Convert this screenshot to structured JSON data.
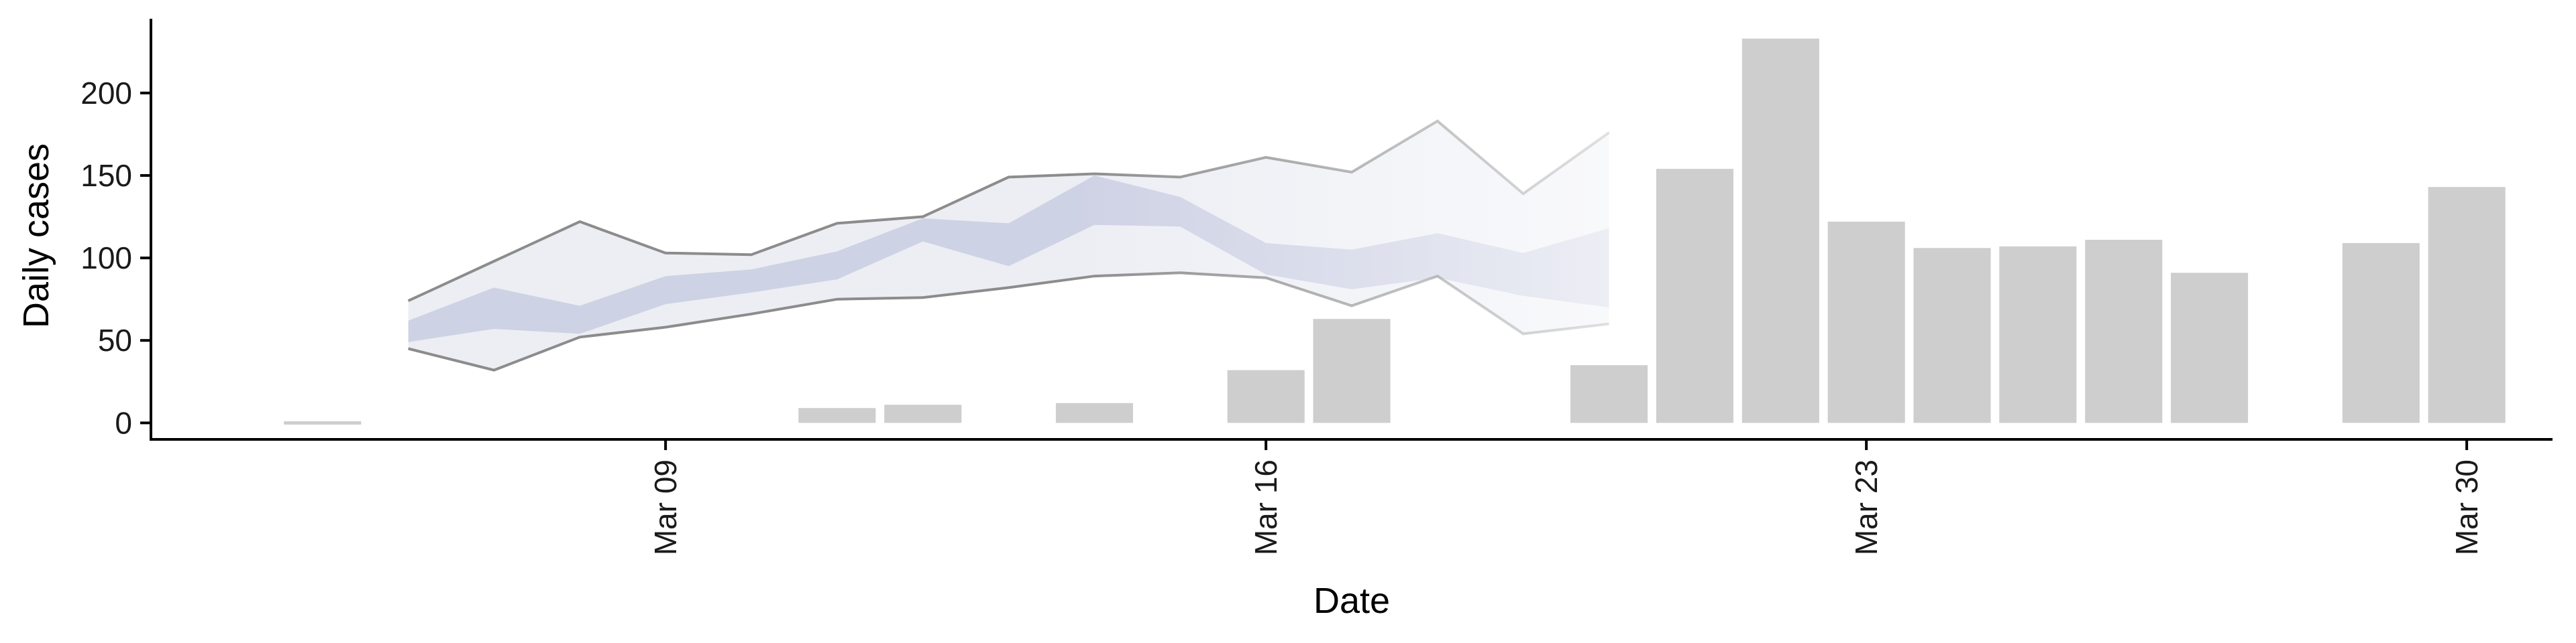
{
  "chart_data": {
    "type": "bar",
    "title": "",
    "xlabel": "Date",
    "ylabel": "Daily cases",
    "ylim": [
      -10,
      245
    ],
    "x_range": [
      "2020-03-03",
      "2020-03-31"
    ],
    "yticks": [
      0,
      50,
      100,
      150,
      200
    ],
    "xticks": [
      {
        "date": "2020-03-09",
        "label": "Mar 09"
      },
      {
        "date": "2020-03-16",
        "label": "Mar 16"
      },
      {
        "date": "2020-03-23",
        "label": "Mar 23"
      },
      {
        "date": "2020-03-30",
        "label": "Mar 30"
      }
    ],
    "grid": false,
    "legend": "none",
    "colors": {
      "bars": "#cccccc",
      "outer_band_fill": "#eceef4",
      "outer_band_line": "#8c8c8c",
      "inner_band_fill": "#c9cde2",
      "axis": "#000000"
    },
    "bars": [
      {
        "date": "2020-03-05",
        "value": 2
      },
      {
        "date": "2020-03-11",
        "value": 9
      },
      {
        "date": "2020-03-12",
        "value": 11
      },
      {
        "date": "2020-03-14",
        "value": 12
      },
      {
        "date": "2020-03-16",
        "value": 32
      },
      {
        "date": "2020-03-17",
        "value": 63
      },
      {
        "date": "2020-03-20",
        "value": 35
      },
      {
        "date": "2020-03-21",
        "value": 154
      },
      {
        "date": "2020-03-22",
        "value": 233
      },
      {
        "date": "2020-03-23",
        "value": 122
      },
      {
        "date": "2020-03-24",
        "value": 106
      },
      {
        "date": "2020-03-25",
        "value": 107
      },
      {
        "date": "2020-03-26",
        "value": 111
      },
      {
        "date": "2020-03-27",
        "value": 91
      },
      {
        "date": "2020-03-29",
        "value": 109
      },
      {
        "date": "2020-03-30",
        "value": 143
      }
    ],
    "outer_band": [
      {
        "date": "2020-03-06",
        "lower": 45,
        "upper": 74
      },
      {
        "date": "2020-03-07",
        "lower": 32,
        "upper": 98
      },
      {
        "date": "2020-03-08",
        "lower": 52,
        "upper": 122
      },
      {
        "date": "2020-03-09",
        "lower": 58,
        "upper": 103
      },
      {
        "date": "2020-03-10",
        "lower": 66,
        "upper": 102
      },
      {
        "date": "2020-03-11",
        "lower": 75,
        "upper": 121
      },
      {
        "date": "2020-03-12",
        "lower": 76,
        "upper": 125
      },
      {
        "date": "2020-03-13",
        "lower": 82,
        "upper": 149
      },
      {
        "date": "2020-03-14",
        "lower": 89,
        "upper": 151
      },
      {
        "date": "2020-03-15",
        "lower": 91,
        "upper": 149
      },
      {
        "date": "2020-03-16",
        "lower": 88,
        "upper": 161
      },
      {
        "date": "2020-03-17",
        "lower": 71,
        "upper": 152
      },
      {
        "date": "2020-03-18",
        "lower": 89,
        "upper": 183
      },
      {
        "date": "2020-03-19",
        "lower": 54,
        "upper": 139
      },
      {
        "date": "2020-03-20",
        "lower": 60,
        "upper": 176
      }
    ],
    "inner_band": [
      {
        "date": "2020-03-06",
        "lower": 49,
        "upper": 62
      },
      {
        "date": "2020-03-07",
        "lower": 57,
        "upper": 82
      },
      {
        "date": "2020-03-08",
        "lower": 54,
        "upper": 71
      },
      {
        "date": "2020-03-09",
        "lower": 72,
        "upper": 89
      },
      {
        "date": "2020-03-10",
        "lower": 79,
        "upper": 93
      },
      {
        "date": "2020-03-11",
        "lower": 87,
        "upper": 104
      },
      {
        "date": "2020-03-12",
        "lower": 110,
        "upper": 124
      },
      {
        "date": "2020-03-13",
        "lower": 95,
        "upper": 121
      },
      {
        "date": "2020-03-14",
        "lower": 120,
        "upper": 150
      },
      {
        "date": "2020-03-15",
        "lower": 119,
        "upper": 137
      },
      {
        "date": "2020-03-16",
        "lower": 90,
        "upper": 109
      },
      {
        "date": "2020-03-17",
        "lower": 81,
        "upper": 105
      },
      {
        "date": "2020-03-18",
        "lower": 88,
        "upper": 115
      },
      {
        "date": "2020-03-19",
        "lower": 77,
        "upper": 103
      },
      {
        "date": "2020-03-20",
        "lower": 70,
        "upper": 118
      }
    ]
  }
}
